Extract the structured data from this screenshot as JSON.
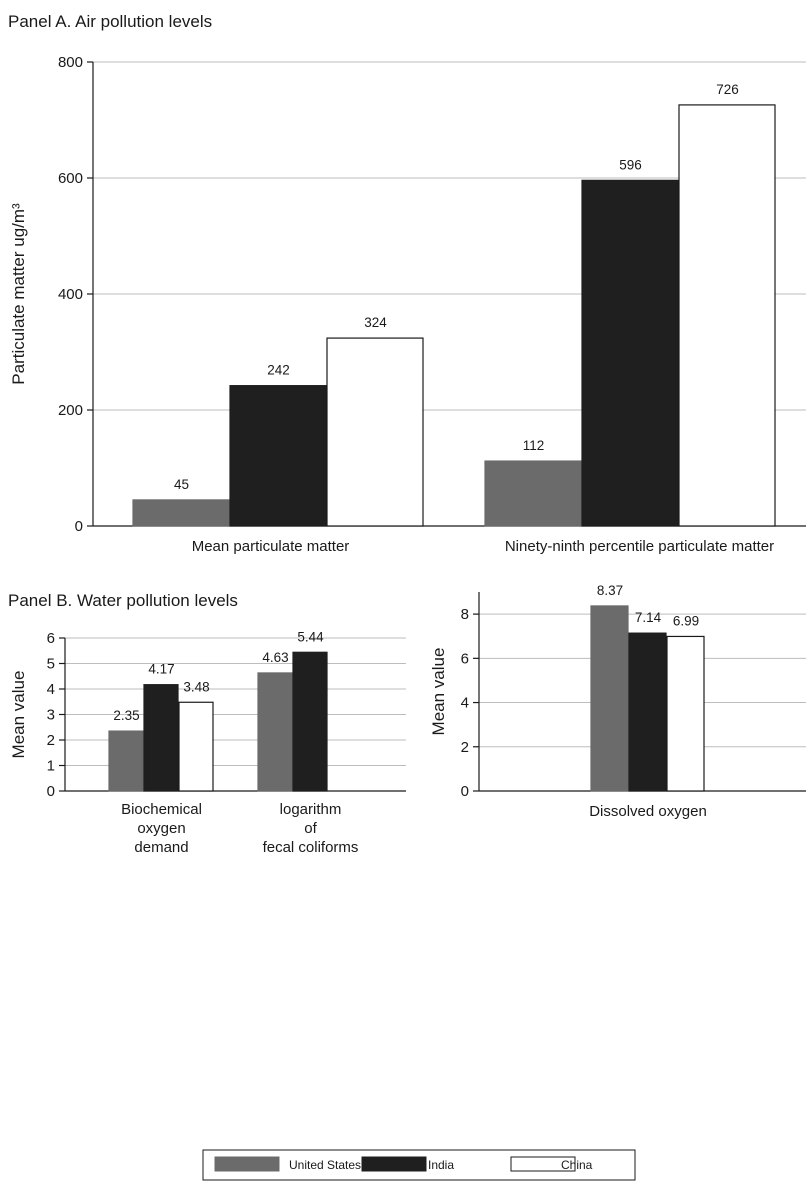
{
  "colors": {
    "United States": "#6b6b6b",
    "India": "#1f1f1f",
    "China": "#ffffff",
    "bar_stroke": "#1a1a1a"
  },
  "legend": {
    "items": [
      "United States",
      "India",
      "China"
    ],
    "position": "bottom-center"
  },
  "chart_data": [
    {
      "panel_title": "Panel A. Air pollution levels",
      "type": "bar",
      "ylabel": "Particulate matter ug/m³",
      "ylim": [
        0,
        800
      ],
      "yticks": [
        0,
        200,
        400,
        600,
        800
      ],
      "categories": [
        "Mean particulate matter",
        "Ninety-ninth percentile particulate matter"
      ],
      "series": [
        {
          "name": "United States",
          "values": [
            45,
            112
          ]
        },
        {
          "name": "India",
          "values": [
            242,
            596
          ]
        },
        {
          "name": "China",
          "values": [
            324,
            726
          ]
        }
      ],
      "grid": true
    },
    {
      "panel_title": "Panel B. Water pollution levels",
      "type": "bar",
      "ylabel": "Mean value",
      "ylim": [
        0,
        6
      ],
      "yticks": [
        0,
        1,
        2,
        3,
        4,
        5,
        6
      ],
      "categories": [
        "Biochemical oxygen demand",
        "logarithm of fecal coliforms"
      ],
      "category_lines": [
        [
          "Biochemical",
          "oxygen",
          "demand"
        ],
        [
          "logarithm",
          "of",
          "fecal coliforms"
        ]
      ],
      "series": [
        {
          "name": "United States",
          "values": [
            2.35,
            4.63
          ]
        },
        {
          "name": "India",
          "values": [
            4.17,
            5.44
          ]
        },
        {
          "name": "China",
          "values": [
            3.48,
            null
          ]
        }
      ],
      "value_labels": [
        [
          "2.35",
          "4.63"
        ],
        [
          "4.17",
          "5.44"
        ],
        [
          "3.48",
          ""
        ]
      ],
      "grid": true
    },
    {
      "type": "bar",
      "ylabel": "Mean value",
      "ylim": [
        0,
        9
      ],
      "yticks": [
        0,
        2,
        4,
        6,
        8
      ],
      "categories": [
        "Dissolved oxygen"
      ],
      "series": [
        {
          "name": "United States",
          "values": [
            8.37
          ]
        },
        {
          "name": "India",
          "values": [
            7.14
          ]
        },
        {
          "name": "China",
          "values": [
            6.99
          ]
        }
      ],
      "value_labels": [
        [
          "8.37"
        ],
        [
          "7.14"
        ],
        [
          "6.99"
        ]
      ],
      "grid": true
    }
  ]
}
